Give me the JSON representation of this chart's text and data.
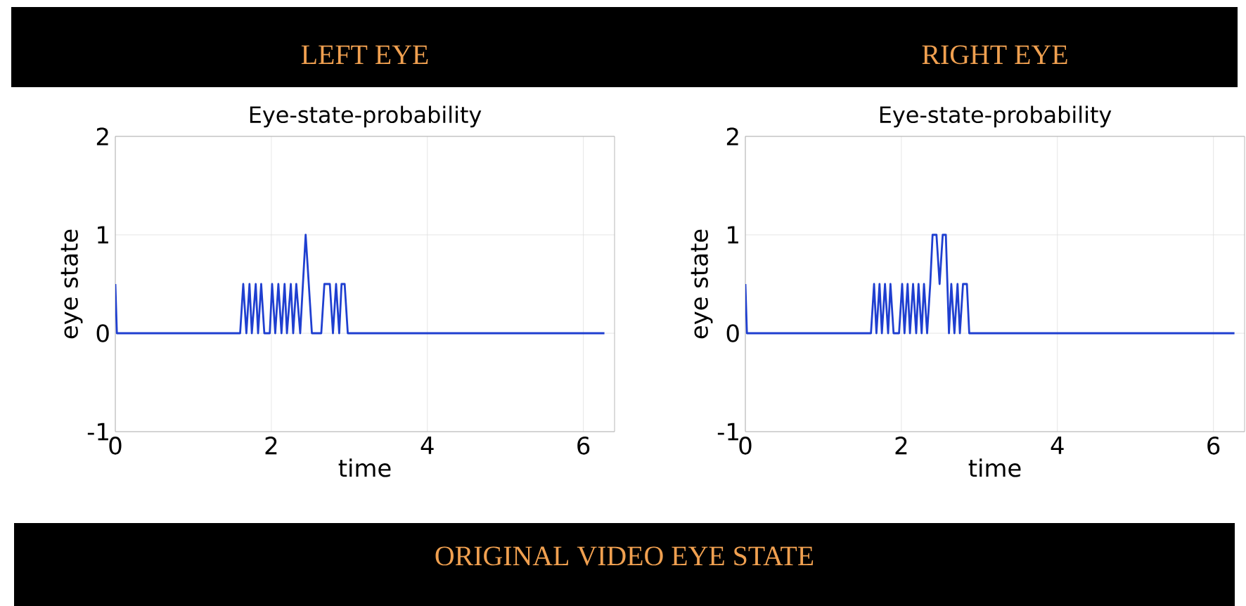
{
  "chart_data": [
    {
      "type": "line",
      "title": "LEFT EYE",
      "subtitle": "Eye-state-probability",
      "xlabel": "time",
      "ylabel": "eye state",
      "color": "#1f3fd0",
      "grid": true,
      "xlim": [
        0,
        6.4
      ],
      "ylim": [
        -1,
        2
      ],
      "xticks": [
        0,
        2,
        4,
        6
      ],
      "yticks": [
        -1,
        0,
        1,
        2
      ],
      "x": [
        0,
        0.02,
        1.6,
        1.64,
        1.68,
        1.72,
        1.75,
        1.8,
        1.83,
        1.87,
        1.91,
        1.98,
        2.01,
        2.05,
        2.09,
        2.13,
        2.17,
        2.2,
        2.25,
        2.28,
        2.32,
        2.37,
        2.44,
        2.52,
        2.64,
        2.68,
        2.75,
        2.79,
        2.83,
        2.87,
        2.9,
        2.94,
        2.98,
        6.27
      ],
      "values": [
        0.5,
        0,
        0,
        0.5,
        0,
        0.5,
        0,
        0.5,
        0,
        0.5,
        0,
        0,
        0.5,
        0,
        0.5,
        0,
        0.5,
        0,
        0.5,
        0,
        0.5,
        0,
        1,
        0,
        0,
        0.5,
        0.5,
        0,
        0.5,
        0,
        0.5,
        0.5,
        0,
        0
      ]
    },
    {
      "type": "line",
      "title": "RIGHT EYE",
      "subtitle": "Eye-state-probability",
      "xlabel": "time",
      "ylabel": "eye state",
      "color": "#1f3fd0",
      "grid": true,
      "xlim": [
        0,
        6.4
      ],
      "ylim": [
        -1,
        2
      ],
      "xticks": [
        0,
        2,
        4,
        6
      ],
      "yticks": [
        -1,
        0,
        1,
        2
      ],
      "x": [
        0,
        0.02,
        1.61,
        1.65,
        1.68,
        1.72,
        1.75,
        1.79,
        1.83,
        1.86,
        1.9,
        1.97,
        2.01,
        2.04,
        2.08,
        2.11,
        2.15,
        2.19,
        2.22,
        2.26,
        2.29,
        2.33,
        2.37,
        2.4,
        2.45,
        2.49,
        2.53,
        2.57,
        2.61,
        2.64,
        2.68,
        2.72,
        2.75,
        2.79,
        2.84,
        2.87,
        6.27
      ],
      "values": [
        0.5,
        0,
        0,
        0.5,
        0,
        0.5,
        0,
        0.5,
        0,
        0.5,
        0,
        0,
        0.5,
        0,
        0.5,
        0,
        0.5,
        0,
        0.5,
        0,
        0.5,
        0,
        0.5,
        1,
        1,
        0.5,
        1,
        1,
        0,
        0.5,
        0,
        0.5,
        0,
        0.5,
        0.5,
        0,
        0
      ]
    },
    {
      "type": "other",
      "title": "ORIGINAL VIDEO EYE STATE"
    }
  ]
}
